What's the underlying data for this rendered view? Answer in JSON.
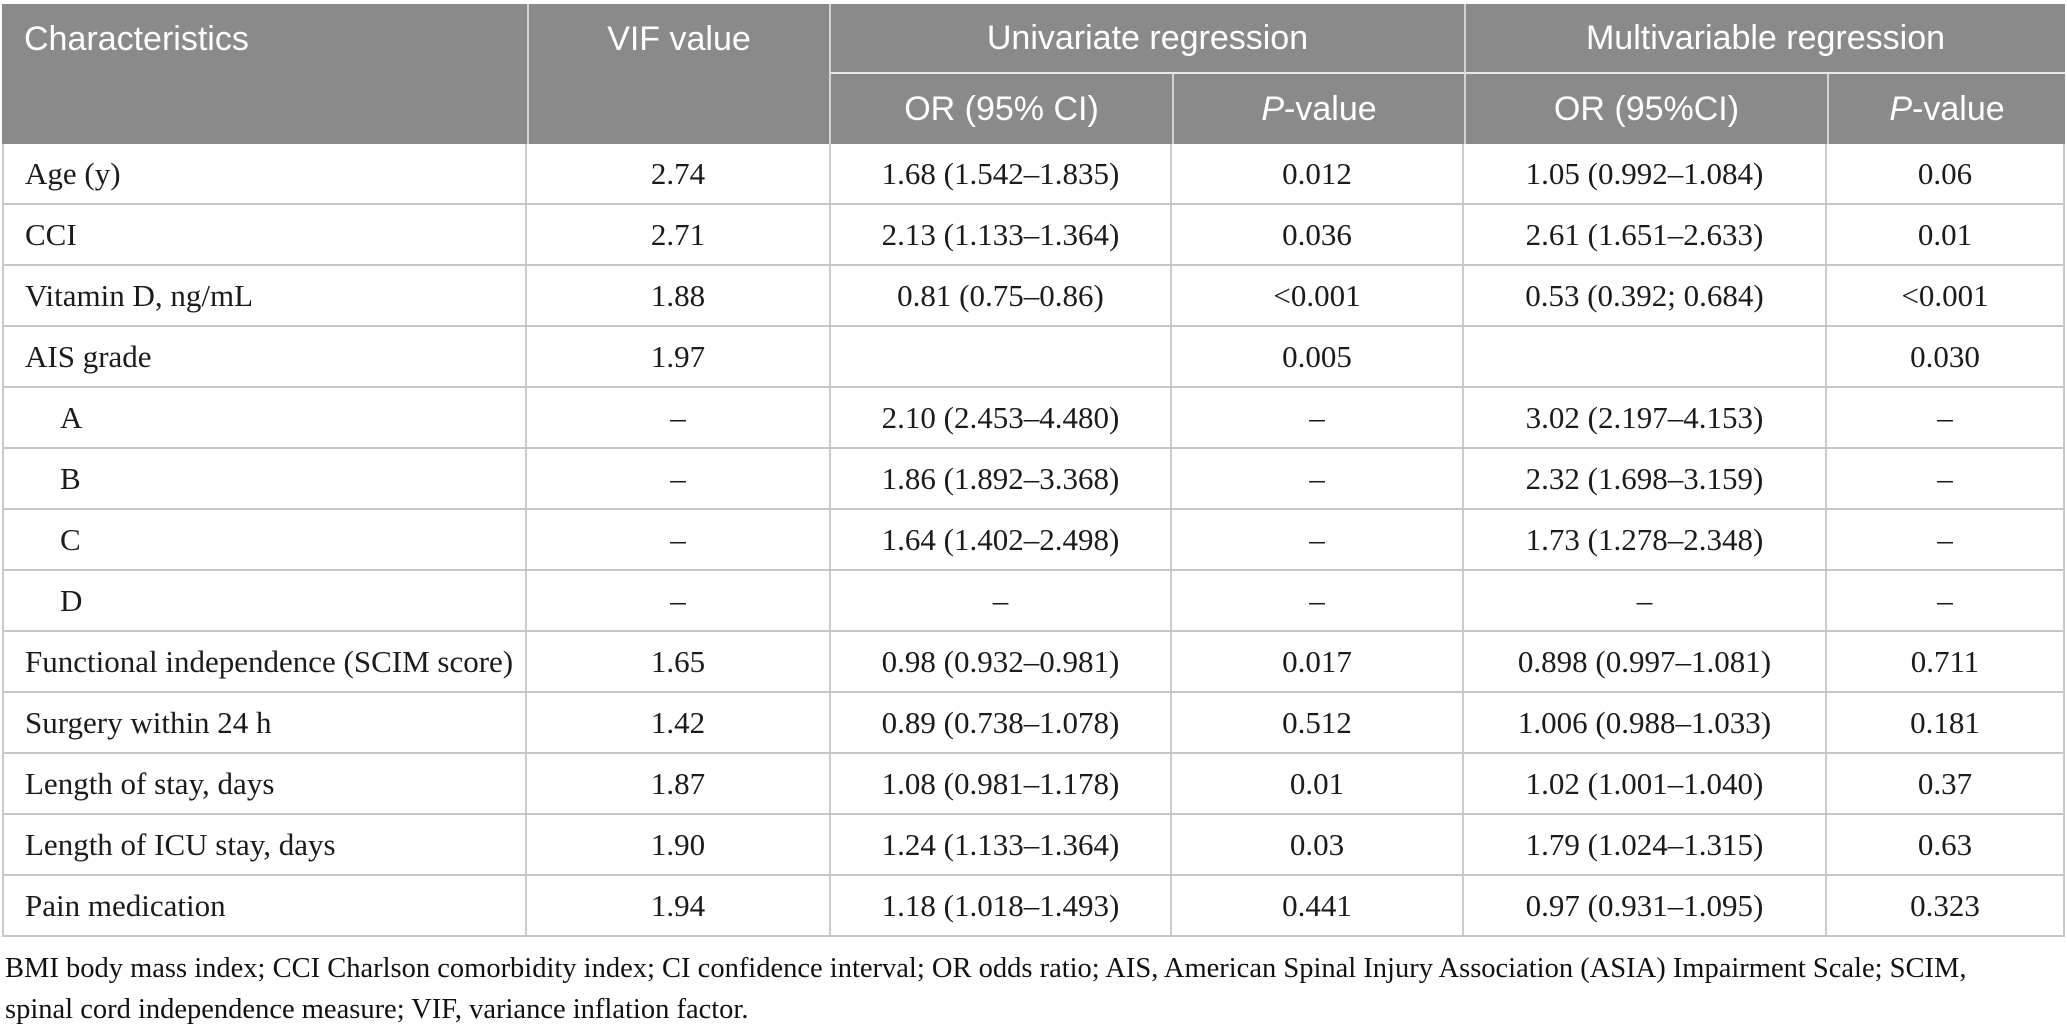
{
  "colors": {
    "header_bg": "#8a8a8a",
    "header_text": "#ffffff",
    "body_text": "#1b1b1b",
    "grid_line": "#c9c9c9"
  },
  "table": {
    "header": {
      "characteristics": "Characteristics",
      "vif_value": "VIF value",
      "univariate_group": "Univariate regression",
      "multivariable_group": "Multivariable regression",
      "univariate_or": "OR (95% CI)",
      "multivariable_or": "OR (95%CI)",
      "p_italic": "P",
      "p_rest": "-value"
    },
    "rows": [
      {
        "label": "Age (y)",
        "vif": "2.74",
        "uni_or": "1.68 (1.542–1.835)",
        "uni_p": "0.012",
        "multi_or": "1.05 (0.992–1.084)",
        "multi_p": "0.06"
      },
      {
        "label": "CCI",
        "vif": "2.71",
        "uni_or": "2.13 (1.133–1.364)",
        "uni_p": "0.036",
        "multi_or": "2.61 (1.651–2.633)",
        "multi_p": "0.01"
      },
      {
        "label": "Vitamin D, ng/mL",
        "vif": "1.88",
        "uni_or": "0.81 (0.75–0.86)",
        "uni_p": "<0.001",
        "multi_or": "0.53 (0.392; 0.684)",
        "multi_p": "<0.001"
      },
      {
        "label": "AIS grade",
        "vif": "1.97",
        "uni_or": "",
        "uni_p": "0.005",
        "multi_or": "",
        "multi_p": "0.030"
      },
      {
        "label": "A",
        "vif": "–",
        "uni_or": "2.10 (2.453–4.480)",
        "uni_p": "–",
        "multi_or": "3.02 (2.197–4.153)",
        "multi_p": "–"
      },
      {
        "label": "B",
        "vif": "–",
        "uni_or": "1.86 (1.892–3.368)",
        "uni_p": "–",
        "multi_or": "2.32 (1.698–3.159)",
        "multi_p": "–"
      },
      {
        "label": "C",
        "vif": "–",
        "uni_or": "1.64 (1.402–2.498)",
        "uni_p": "–",
        "multi_or": "1.73 (1.278–2.348)",
        "multi_p": "–"
      },
      {
        "label": "D",
        "vif": "–",
        "uni_or": "–",
        "uni_p": "–",
        "multi_or": "–",
        "multi_p": "–"
      },
      {
        "label": "Functional independence (SCIM score)",
        "vif": "1.65",
        "uni_or": "0.98 (0.932–0.981)",
        "uni_p": "0.017",
        "multi_or": "0.898 (0.997–1.081)",
        "multi_p": "0.711"
      },
      {
        "label": "Surgery within 24 h",
        "vif": "1.42",
        "uni_or": "0.89 (0.738–1.078)",
        "uni_p": "0.512",
        "multi_or": "1.006 (0.988–1.033)",
        "multi_p": "0.181"
      },
      {
        "label": "Length of stay, days",
        "vif": "1.87",
        "uni_or": "1.08 (0.981–1.178)",
        "uni_p": "0.01",
        "multi_or": "1.02 (1.001–1.040)",
        "multi_p": "0.37"
      },
      {
        "label": "Length of ICU stay, days",
        "vif": "1.90",
        "uni_or": "1.24 (1.133–1.364)",
        "uni_p": "0.03",
        "multi_or": "1.79 (1.024–1.315)",
        "multi_p": "0.63"
      },
      {
        "label": "Pain medication",
        "vif": "1.94",
        "uni_or": "1.18 (1.018–1.493)",
        "uni_p": "0.441",
        "multi_or": "0.97 (0.931–1.095)",
        "multi_p": "0.323"
      }
    ]
  },
  "footnote": {
    "text": "BMI body mass index; CCI Charlson comorbidity index; CI confidence interval; OR odds ratio; AIS, American Spinal Injury Association (ASIA) Impairment Scale; SCIM, spinal cord independence measure; VIF, variance inflation factor."
  }
}
